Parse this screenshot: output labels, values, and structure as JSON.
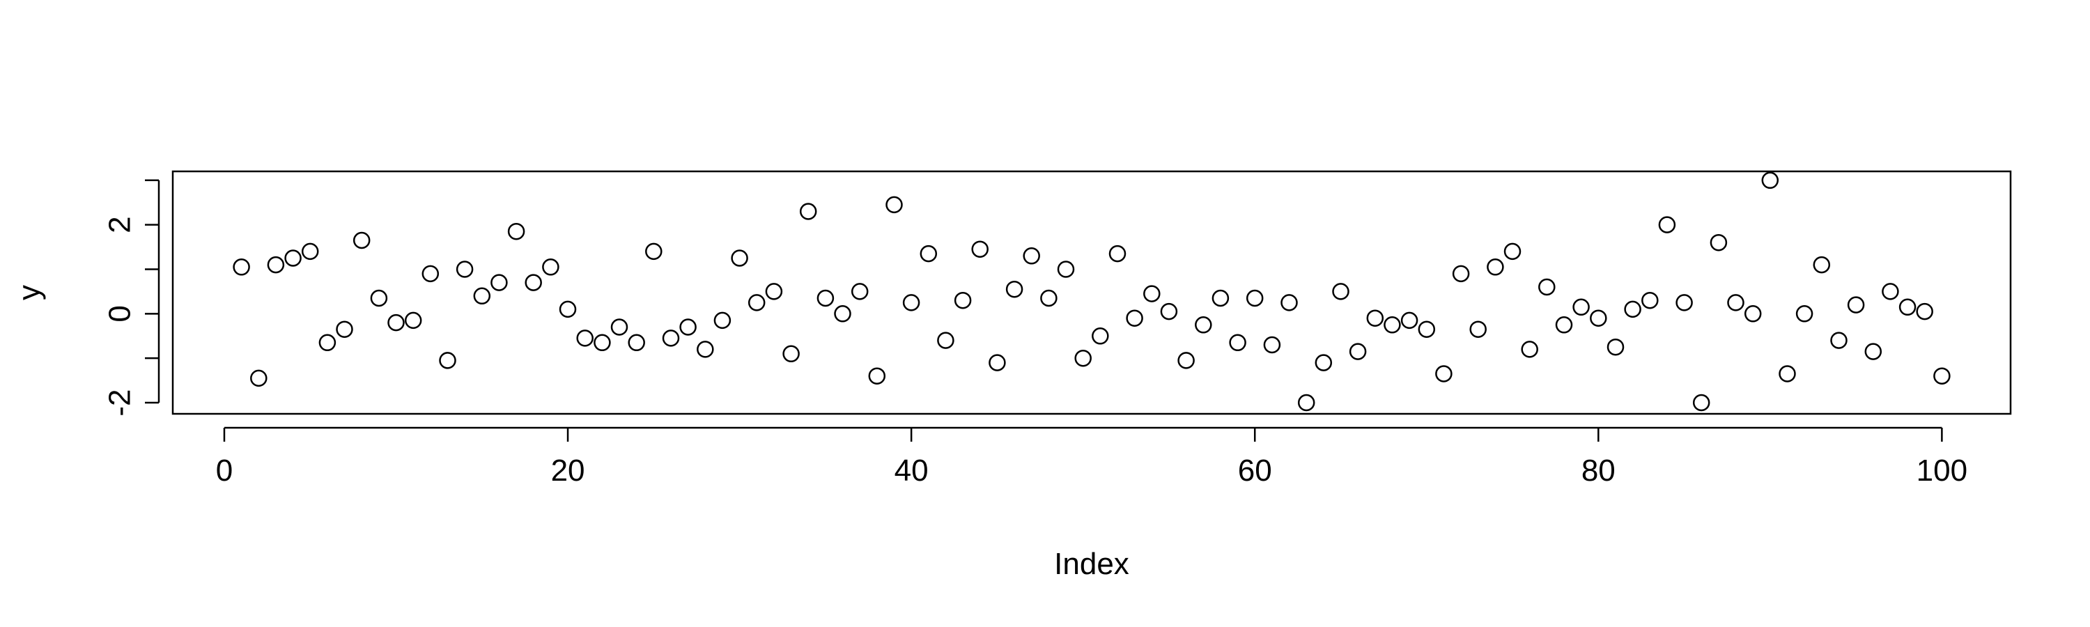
{
  "chart_data": {
    "type": "scatter",
    "xlabel": "Index",
    "ylabel": "y",
    "xlim": [
      -3,
      104
    ],
    "ylim": [
      -2.25,
      3.2
    ],
    "x_ticks": [
      0,
      20,
      40,
      60,
      80,
      100
    ],
    "x_tick_labels": [
      "0",
      "20",
      "40",
      "60",
      "80",
      "100"
    ],
    "y_ticks_major": [
      -2,
      0,
      2
    ],
    "y_tick_labels": [
      "-2",
      "0",
      "2"
    ],
    "y_ticks_minor": [
      -1,
      1,
      3
    ],
    "grid": false,
    "marker": "open-circle",
    "x": [
      1,
      2,
      3,
      4,
      5,
      6,
      7,
      8,
      9,
      10,
      11,
      12,
      13,
      14,
      15,
      16,
      17,
      18,
      19,
      20,
      21,
      22,
      23,
      24,
      25,
      26,
      27,
      28,
      29,
      30,
      31,
      32,
      33,
      34,
      35,
      36,
      37,
      38,
      39,
      40,
      41,
      42,
      43,
      44,
      45,
      46,
      47,
      48,
      49,
      50,
      51,
      52,
      53,
      54,
      55,
      56,
      57,
      58,
      59,
      60,
      61,
      62,
      63,
      64,
      65,
      66,
      67,
      68,
      69,
      70,
      71,
      72,
      73,
      74,
      75,
      76,
      77,
      78,
      79,
      80,
      81,
      82,
      83,
      84,
      85,
      86,
      87,
      88,
      89,
      90,
      91,
      92,
      93,
      94,
      95,
      96,
      97,
      98,
      99,
      100
    ],
    "y": [
      1.05,
      -1.45,
      1.1,
      1.25,
      1.4,
      -0.65,
      -0.35,
      1.65,
      0.35,
      -0.2,
      -0.15,
      0.9,
      -1.05,
      1.0,
      0.4,
      0.7,
      1.85,
      0.7,
      1.05,
      0.1,
      -0.55,
      -0.65,
      -0.3,
      -0.65,
      1.4,
      -0.55,
      -0.3,
      -0.8,
      -0.15,
      1.25,
      0.25,
      0.5,
      -0.9,
      2.3,
      0.35,
      0.0,
      0.5,
      -1.4,
      2.45,
      0.25,
      1.35,
      -0.6,
      0.3,
      1.45,
      -1.1,
      0.55,
      1.3,
      0.35,
      1.0,
      -1.0,
      -0.5,
      1.35,
      -0.1,
      0.45,
      0.05,
      -1.05,
      -0.25,
      0.35,
      -0.65,
      0.35,
      -0.7,
      0.25,
      -2.0,
      -1.1,
      0.5,
      -0.85,
      -0.1,
      -0.25,
      -0.15,
      -0.35,
      -1.35,
      0.9,
      -0.35,
      1.05,
      1.4,
      -0.8,
      0.6,
      -0.25,
      0.15,
      -0.1,
      -0.75,
      0.1,
      0.3,
      2.0,
      0.25,
      -2.0,
      1.6,
      0.25,
      0.0,
      3.0,
      -1.35,
      0.0,
      1.1,
      -0.6,
      0.2,
      -0.85,
      0.5,
      0.15,
      0.05,
      -1.4
    ]
  }
}
